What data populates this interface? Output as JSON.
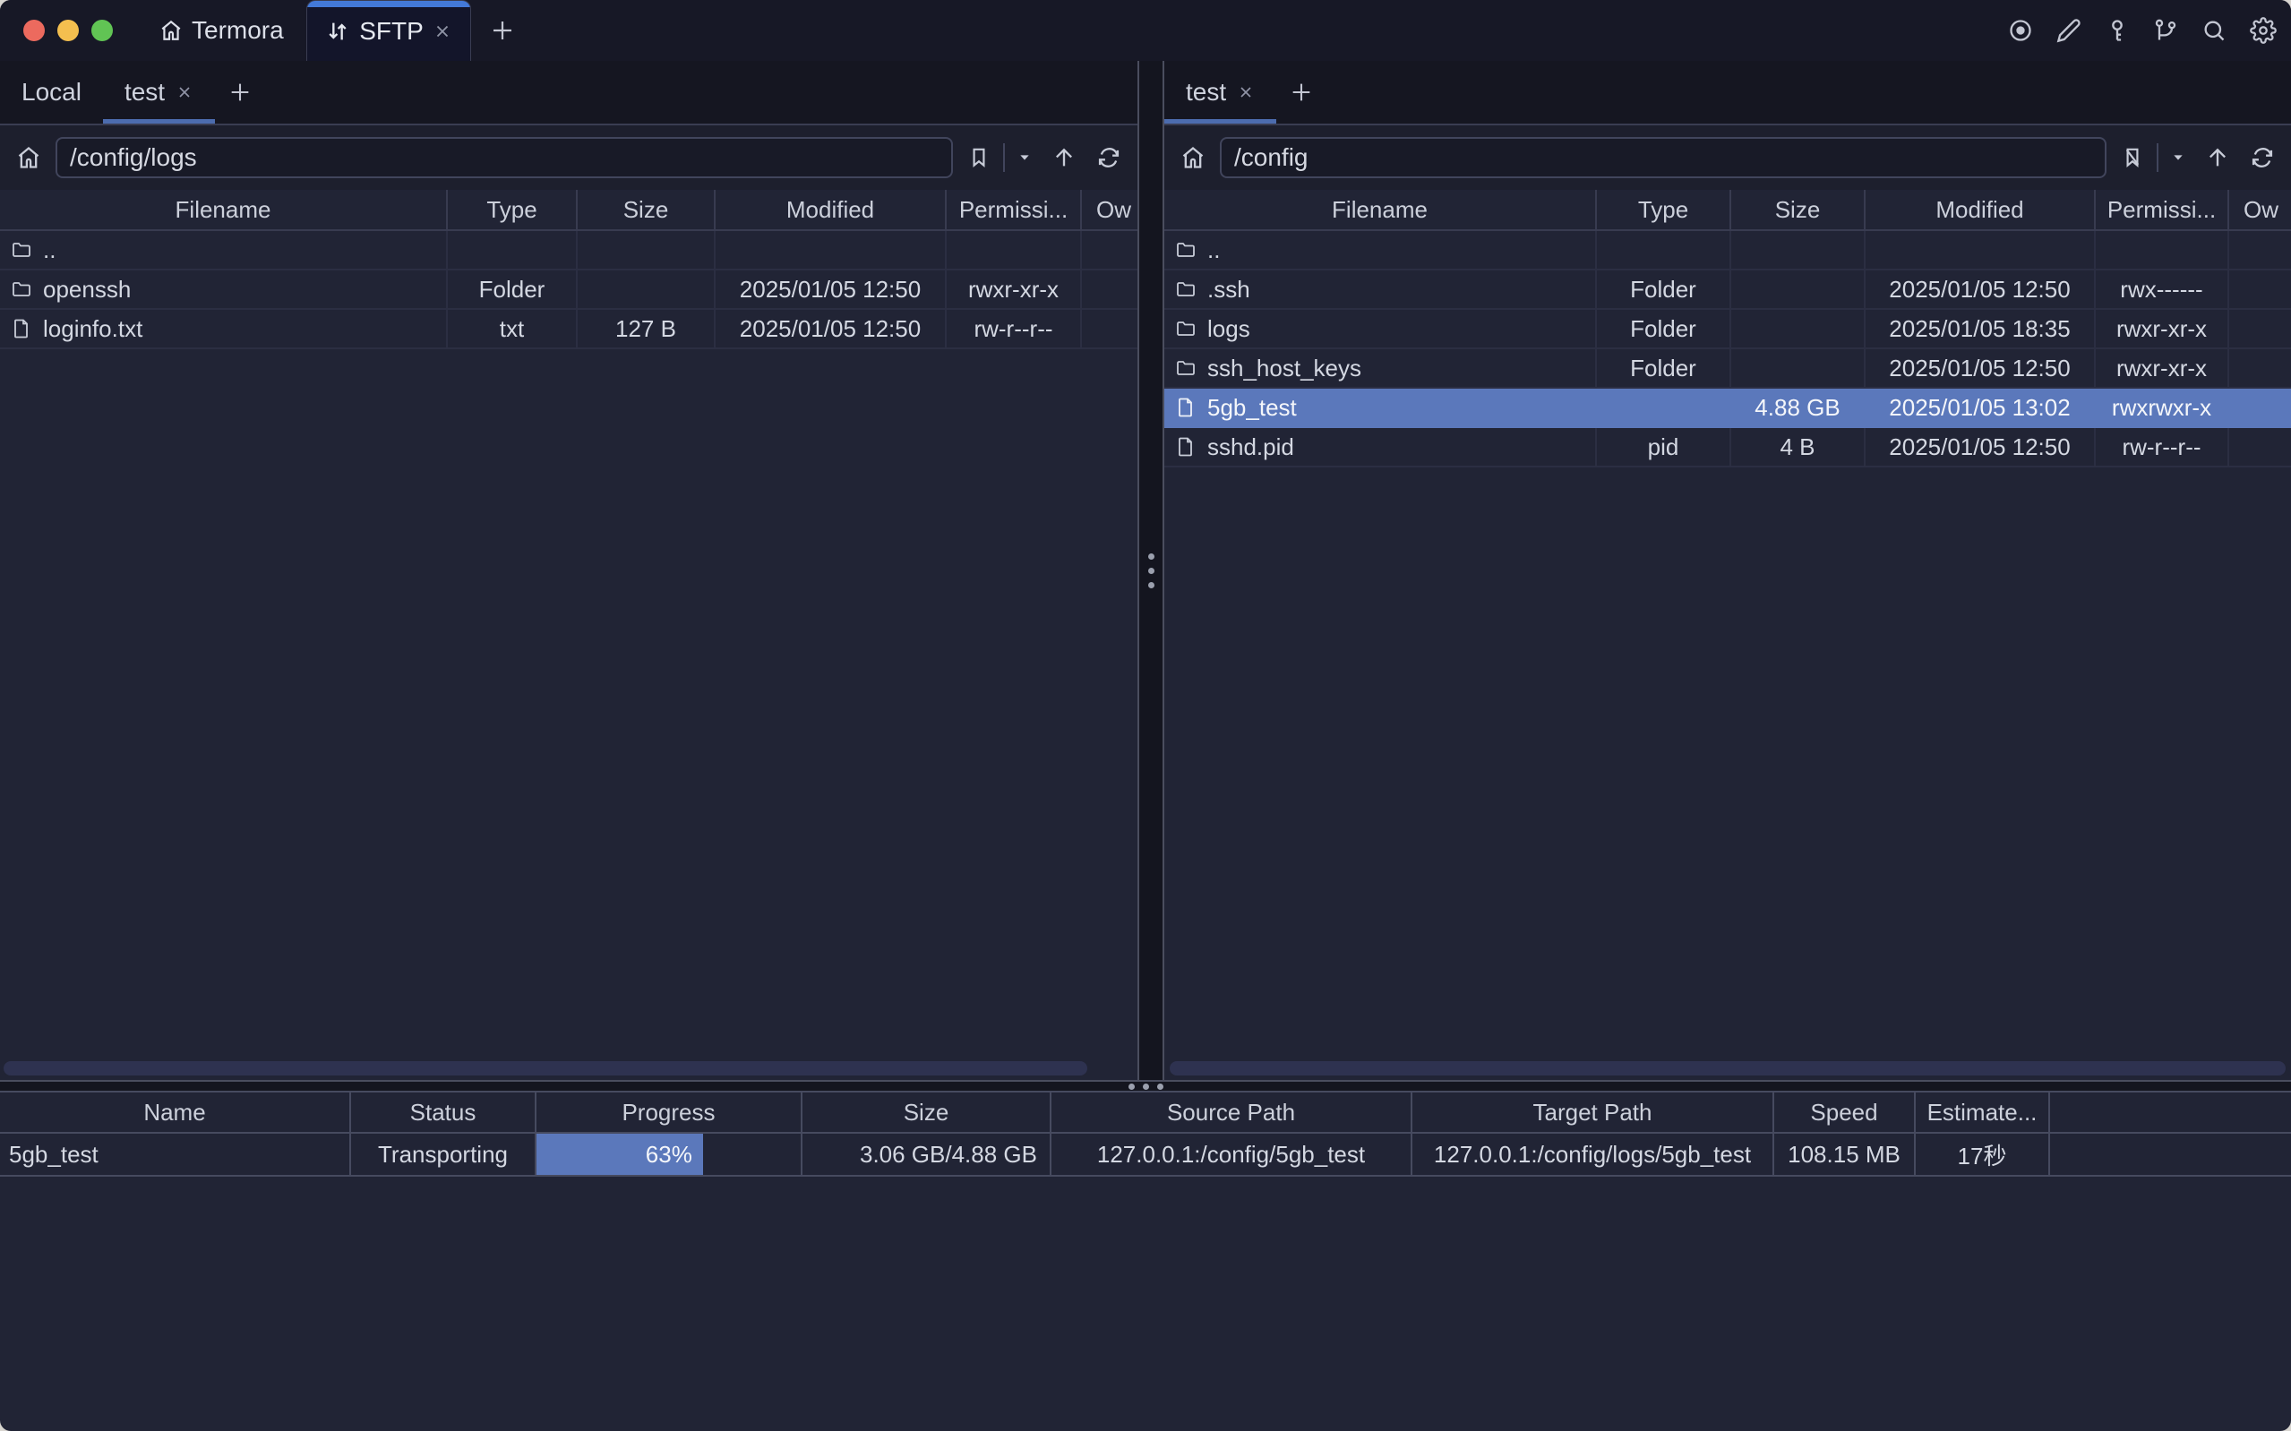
{
  "titlebar": {
    "app_name": "Termora",
    "sftp_tab_label": "SFTP"
  },
  "panels": {
    "left": {
      "tab_local": "Local",
      "tab_session": "test",
      "path": "/config/logs",
      "headers": {
        "filename": "Filename",
        "type": "Type",
        "size": "Size",
        "modified": "Modified",
        "permissions": "Permissi...",
        "owner": "Ow"
      },
      "rows": [
        {
          "name": "..",
          "type": "",
          "size": "",
          "modified": "",
          "perm": ""
        },
        {
          "name": "openssh",
          "type": "Folder",
          "size": "",
          "modified": "2025/01/05 12:50",
          "perm": "rwxr-xr-x"
        },
        {
          "name": "loginfo.txt",
          "type": "txt",
          "size": "127 B",
          "modified": "2025/01/05 12:50",
          "perm": "rw-r--r--"
        }
      ]
    },
    "right": {
      "tab_session": "test",
      "path": "/config",
      "headers": {
        "filename": "Filename",
        "type": "Type",
        "size": "Size",
        "modified": "Modified",
        "permissions": "Permissi...",
        "owner": "Ow"
      },
      "rows": [
        {
          "name": "..",
          "type": "",
          "size": "",
          "modified": "",
          "perm": ""
        },
        {
          "name": ".ssh",
          "type": "Folder",
          "size": "",
          "modified": "2025/01/05 12:50",
          "perm": "rwx------"
        },
        {
          "name": "logs",
          "type": "Folder",
          "size": "",
          "modified": "2025/01/05 18:35",
          "perm": "rwxr-xr-x"
        },
        {
          "name": "ssh_host_keys",
          "type": "Folder",
          "size": "",
          "modified": "2025/01/05 12:50",
          "perm": "rwxr-xr-x"
        },
        {
          "name": "5gb_test",
          "type": "",
          "size": "4.88 GB",
          "modified": "2025/01/05 13:02",
          "perm": "rwxrwxr-x"
        },
        {
          "name": "sshd.pid",
          "type": "pid",
          "size": "4 B",
          "modified": "2025/01/05 12:50",
          "perm": "rw-r--r--"
        }
      ]
    }
  },
  "transfers": {
    "headers": {
      "name": "Name",
      "status": "Status",
      "progress": "Progress",
      "size": "Size",
      "source": "Source Path",
      "target": "Target Path",
      "speed": "Speed",
      "estimate": "Estimate..."
    },
    "row": {
      "name": "5gb_test",
      "status": "Transporting",
      "progress_label": "63%",
      "progress_pct": 63,
      "size": "3.06 GB/4.88 GB",
      "source": "127.0.0.1:/config/5gb_test",
      "target": "127.0.0.1:/config/logs/5gb_test",
      "speed": "108.15 MB",
      "estimate": "17秒"
    }
  },
  "colors": {
    "accent_stripe": "#4379d8",
    "tab_underline": "#4c6cae",
    "selection": "#5b78bb",
    "traffic_red": "#ec6a5e",
    "traffic_yellow": "#f4bf4f",
    "traffic_green": "#61c454"
  }
}
